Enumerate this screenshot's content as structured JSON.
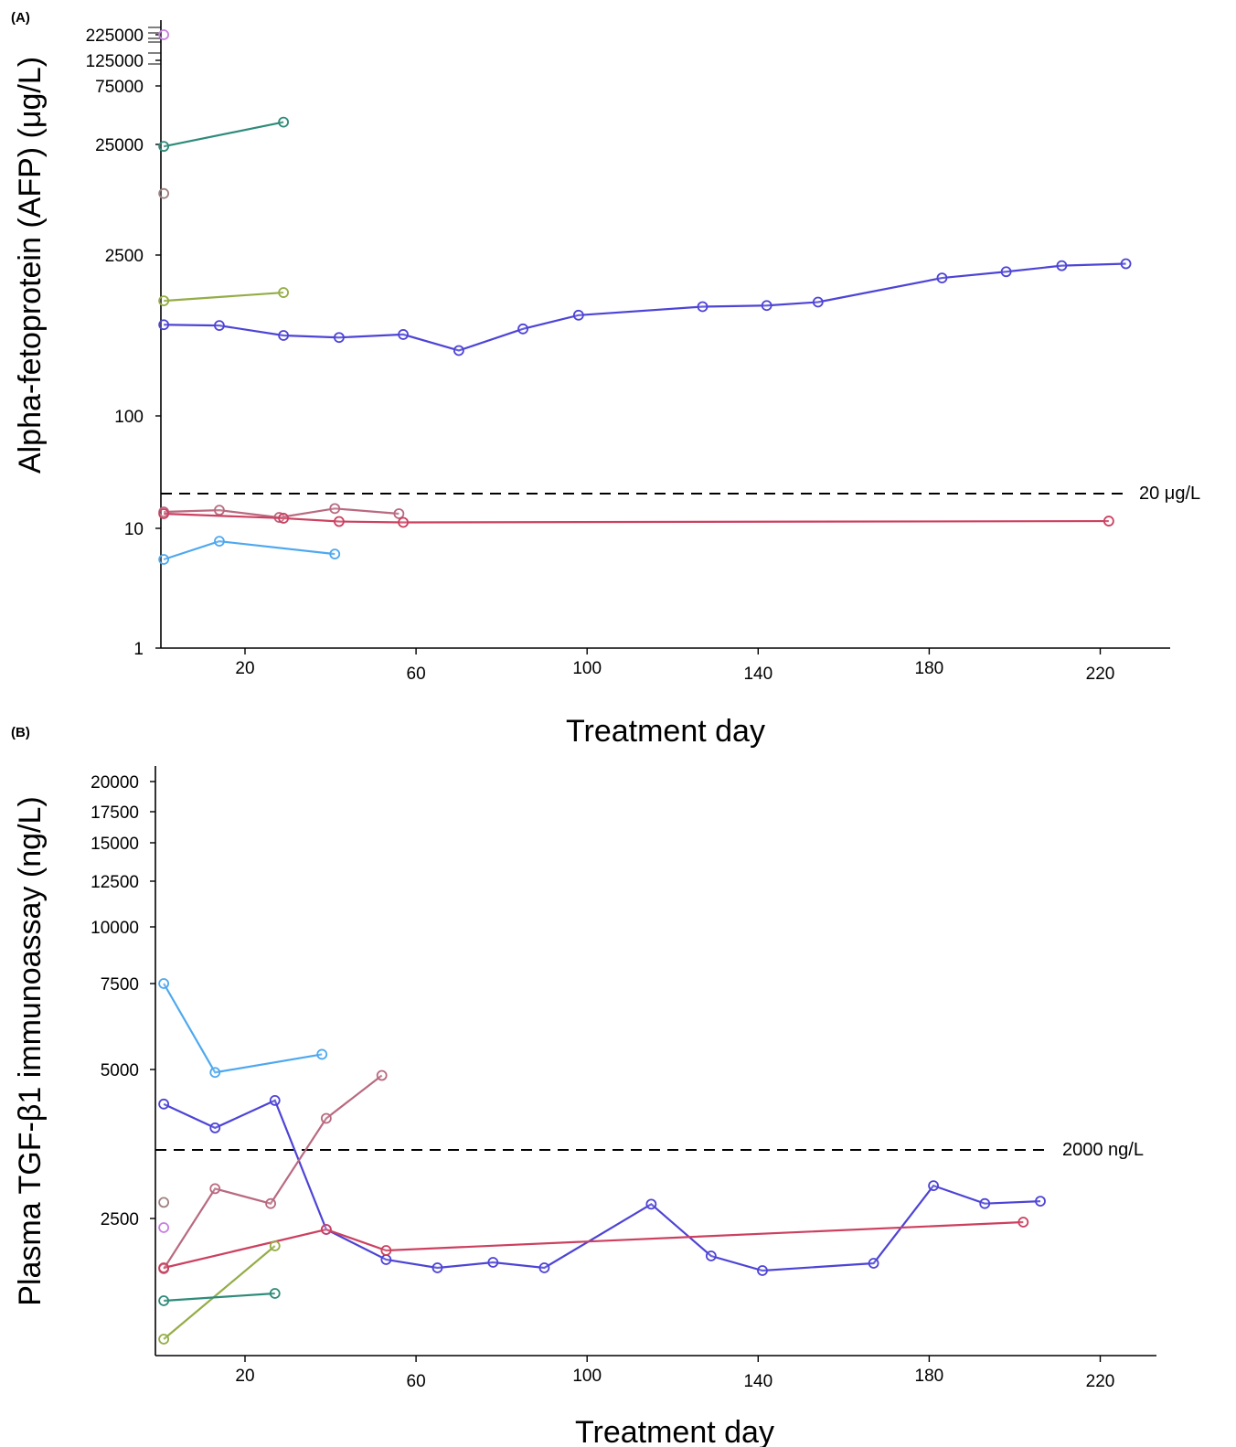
{
  "chart_data": [
    {
      "type": "line",
      "panel_label": "(A)",
      "xlabel": "Treatment day",
      "ylabel": "Alpha-fetoprotein (AFP) (μg/L)",
      "x_ticks": [
        "20",
        "60",
        "100",
        "140",
        "180",
        "220"
      ],
      "y_ticks": [
        "1",
        "10",
        "100",
        "2500",
        "25000",
        "75000",
        "125000",
        "225000"
      ],
      "y_scale": "log",
      "reference_line": {
        "value": 20,
        "label": "20 μg/L"
      },
      "series": [
        {
          "color": "#c880e0",
          "x": [
            1
          ],
          "y": [
            225000
          ]
        },
        {
          "color": "#2e8b7a",
          "x": [
            1,
            29
          ],
          "y": [
            24000,
            38000
          ]
        },
        {
          "color": "#a08080",
          "x": [
            1
          ],
          "y": [
            9000
          ]
        },
        {
          "color": "#94ad45",
          "x": [
            1,
            29
          ],
          "y": [
            1000,
            1180
          ]
        },
        {
          "color": "#4d44d6",
          "x": [
            1,
            14,
            29,
            42,
            57,
            70,
            85,
            98,
            127,
            142,
            154,
            183,
            198,
            211,
            226
          ],
          "y": [
            620,
            610,
            500,
            480,
            510,
            370,
            570,
            750,
            890,
            910,
            975,
            1580,
            1790,
            2020,
            2100
          ]
        },
        {
          "color": "#b86a80",
          "x": [
            1,
            14,
            28,
            41,
            56
          ],
          "y": [
            14,
            14.5,
            12.5,
            15,
            13.5
          ]
        },
        {
          "color": "#cc4060",
          "x": [
            1,
            29,
            42,
            57,
            222
          ],
          "y": [
            13.5,
            12.3,
            11.5,
            11.3,
            11.6
          ]
        },
        {
          "color": "#4ea8ef",
          "x": [
            1,
            14,
            41
          ],
          "y": [
            5.5,
            7.8,
            6.1
          ]
        }
      ]
    },
    {
      "type": "line",
      "panel_label": "(B)",
      "xlabel": "Treatment day",
      "ylabel": "Plasma TGF-β1 immunoassay (ng/L)",
      "x_ticks": [
        "20",
        "60",
        "100",
        "140",
        "180",
        "220"
      ],
      "y_ticks": [
        "2500",
        "5000",
        "7500",
        "10000",
        "12500",
        "15000",
        "17500",
        "20000"
      ],
      "reference_line": {
        "value": 2000,
        "label": "2000 ng/L"
      },
      "series": [
        {
          "color": "#4ea8ef",
          "x": [
            1,
            13,
            38
          ],
          "y": [
            7500,
            4950,
            5440
          ]
        },
        {
          "color": "#4d44d6",
          "x": [
            1,
            13,
            27,
            39,
            53,
            65,
            78,
            90,
            115,
            129,
            141,
            167,
            181,
            193,
            206
          ],
          "y": [
            4420,
            4020,
            4480,
            2380,
            2050,
            1960,
            2020,
            1960,
            2740,
            2090,
            1930,
            2010,
            3050,
            2750,
            2790
          ]
        },
        {
          "color": "#b86a80",
          "x": [
            1,
            13,
            26,
            39,
            52
          ],
          "y": [
            1950,
            3000,
            2750,
            4180,
            4900
          ]
        },
        {
          "color": "#cc4060",
          "x": [
            1,
            39,
            53,
            202
          ],
          "y": [
            1960,
            2380,
            2150,
            2460
          ]
        },
        {
          "color": "#94ad45",
          "x": [
            1,
            27
          ],
          "y": [
            1180,
            2200
          ]
        },
        {
          "color": "#2e8b7a",
          "x": [
            1,
            27
          ],
          "y": [
            1600,
            1680
          ]
        },
        {
          "color": "#a08080",
          "x": [
            1
          ],
          "y": [
            2770
          ]
        },
        {
          "color": "#c880e0",
          "x": [
            1
          ],
          "y": [
            2400
          ]
        }
      ]
    }
  ]
}
